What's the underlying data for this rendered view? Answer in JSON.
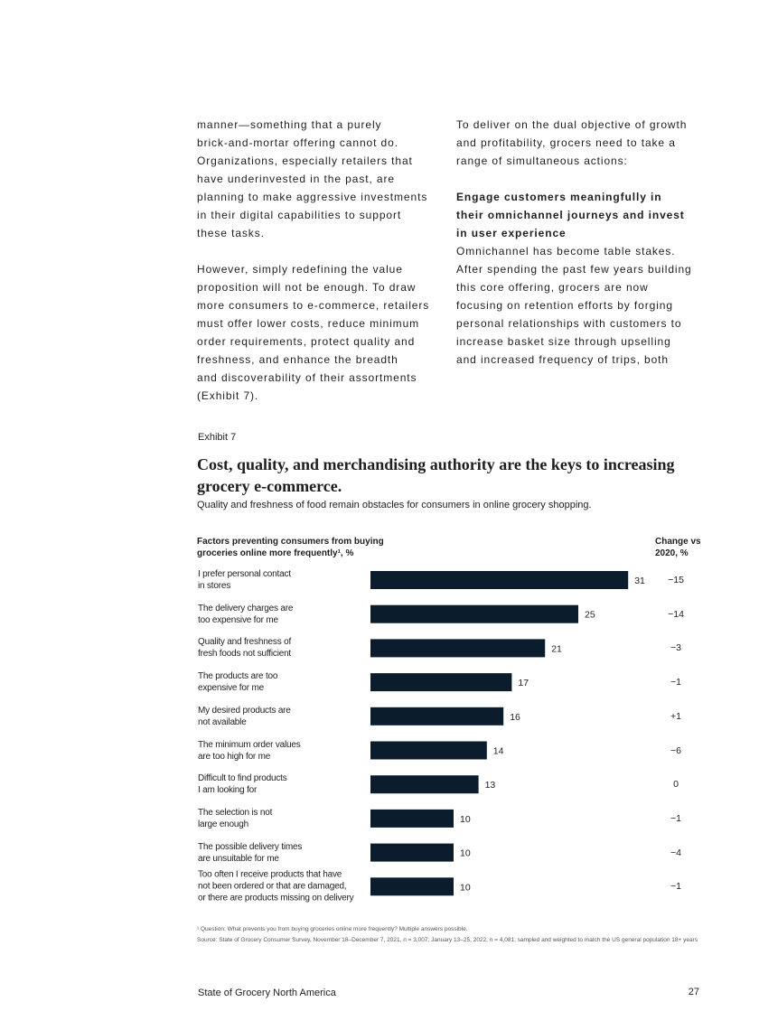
{
  "body": {
    "left": [
      [
        "manner—something that a purely",
        "brick-and-mortar offering cannot do.",
        "Organizations, especially retailers that",
        "have underinvested in the past, are",
        "planning to make aggressive investments",
        "in their digital capabilities to support",
        "these tasks."
      ],
      [
        "However, simply redefining the value",
        "proposition will not be enough. To draw",
        "more consumers to e-commerce, retailers",
        "must offer lower costs, reduce minimum",
        "order requirements, protect quality and",
        "freshness, and enhance the breadth",
        "and discoverability of their assortments",
        "(Exhibit 7)."
      ]
    ],
    "right": [
      [
        "To deliver on the dual objective of growth",
        "and profitability, grocers need to take a",
        "range of simultaneous actions:"
      ],
      [
        "Engage customers meaningfully in",
        "their omnichannel journeys and invest",
        "in user experience"
      ],
      [
        "Omnichannel has become table stakes.",
        "After spending the past few years building",
        "this core offering, grocers are now",
        "focusing on retention efforts by forging",
        "personal relationships with customers to",
        "increase basket size through upselling",
        "and increased frequency of trips, both"
      ]
    ]
  },
  "chart_data": {
    "type": "bar",
    "exhibit": "Exhibit 7",
    "title": "Cost, quality, and merchandising authority are the keys to increasing grocery e-commerce.",
    "subtitle": "Quality and freshness of food remain obstacles for consumers in online grocery shopping.",
    "category_header": "Factors preventing consumers from buying groceries online more frequently¹, %",
    "change_header": "Change vs 2020, %",
    "categories": [
      "I prefer personal contact\nin stores",
      "The delivery charges are\ntoo expensive for me",
      "Quality and freshness of\nfresh foods not sufficient",
      "The products are too\nexpensive for me",
      "My desired products are\nnot available",
      "The minimum order values\nare too high for me",
      "Difficult to find products\nI am looking for",
      "The selection is not\nlarge enough",
      "The possible delivery times\nare unsuitable for me",
      "Too often I receive products that have\nnot been ordered or that are damaged,\nor there are products missing on delivery"
    ],
    "values": [
      31,
      25,
      21,
      17,
      16,
      14,
      13,
      10,
      10,
      10
    ],
    "changes": [
      "−15",
      "−14",
      "−3",
      "−1",
      "+1",
      "−6",
      "0",
      "−1",
      "−4",
      "−1"
    ],
    "color": "#0b1c2c",
    "footnotes": [
      "¹ Question: What prevents you from buying groceries online more frequently? Multiple answers possible.",
      "Source: State of Grocery Consumer Survey, November 18–December 7, 2021, n = 3,007; January 13–25, 2022, n = 4,081; sampled and weighted to match the US general population 18+ years"
    ]
  },
  "footer": {
    "title": "State of Grocery North America",
    "page": "27"
  }
}
